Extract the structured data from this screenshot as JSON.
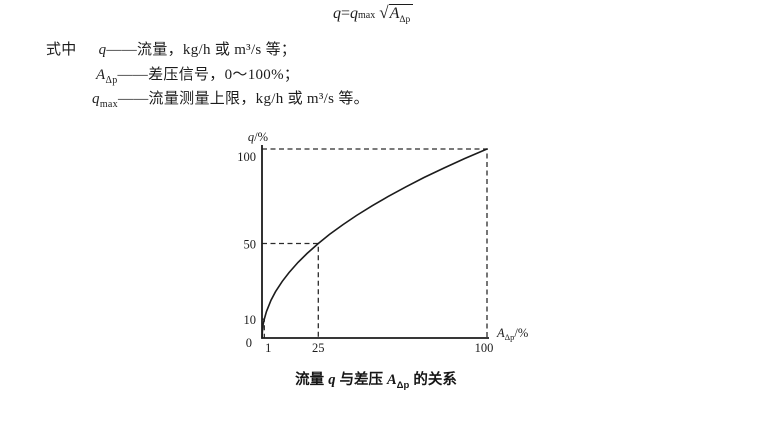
{
  "page": {
    "background": "#ffffff",
    "ink": "#1c1c1c"
  },
  "formula": {
    "lhs": "q",
    "equals": "=",
    "rhs_base": "q",
    "rhs_sub": "max",
    "radicand_base": "A",
    "radicand_sub": "Δp"
  },
  "definitions": {
    "lead": "式中",
    "items": [
      {
        "sym": "q",
        "sub": "",
        "dash": "——",
        "desc": "流量，kg/h 或 m³/s 等；"
      },
      {
        "sym": "A",
        "sub": "Δp",
        "dash": "——",
        "desc": "差压信号，0～100%；"
      },
      {
        "sym": "q",
        "sub": "max",
        "dash": "——",
        "desc": "流量测量上限，kg/h 或 m³/s 等。"
      }
    ]
  },
  "chart_data": {
    "type": "line",
    "title": "流量 q 与差压 AΔp 的关系",
    "xlabel": "AΔp/%",
    "ylabel": "q/%",
    "xlabel_parts": [
      {
        "t": "A",
        "italic": true
      },
      {
        "t": "Δp",
        "sub": true
      },
      {
        "t": "/%"
      }
    ],
    "ylabel_parts": [
      {
        "t": "q",
        "italic": true
      },
      {
        "t": "/%"
      }
    ],
    "xlim": [
      0,
      100
    ],
    "ylim": [
      0,
      100
    ],
    "grid": false,
    "legend": false,
    "relation": "q(%) = 10·√(AΔp %)",
    "x_ticks": [
      {
        "v": 1,
        "label": "1",
        "dx": 4
      },
      {
        "v": 25,
        "label": "25"
      },
      {
        "v": 100,
        "label": "100",
        "dx": -3
      }
    ],
    "y_ticks": [
      {
        "v": 100,
        "label": "100",
        "dy": 12
      },
      {
        "v": 50,
        "label": "50",
        "dy": 5
      },
      {
        "v": 10,
        "label": "10",
        "dy": 5
      },
      {
        "v": 0,
        "label": "0",
        "dy": 9,
        "dx": -4
      }
    ],
    "series": [
      {
        "name": "q = qmax·√(AΔp)",
        "points": [
          [
            0,
            0
          ],
          [
            0.25,
            5
          ],
          [
            0.5,
            7.1
          ],
          [
            1,
            10
          ],
          [
            2,
            14.1
          ],
          [
            4,
            20
          ],
          [
            6,
            24.5
          ],
          [
            9,
            30
          ],
          [
            12,
            34.6
          ],
          [
            16,
            40
          ],
          [
            20,
            44.7
          ],
          [
            25,
            50
          ],
          [
            30,
            54.8
          ],
          [
            36,
            60
          ],
          [
            42,
            64.8
          ],
          [
            49,
            70
          ],
          [
            56,
            74.8
          ],
          [
            64,
            80
          ],
          [
            72,
            84.9
          ],
          [
            81,
            90
          ],
          [
            90,
            94.9
          ],
          [
            100,
            100
          ]
        ]
      }
    ],
    "guides": [
      {
        "x": 1,
        "y": 10
      },
      {
        "x": 25,
        "y": 50
      },
      {
        "x": 100,
        "y": 100
      }
    ]
  },
  "caption": {
    "p1": "流量 ",
    "sym1": "q",
    "p2": " 与差压 ",
    "sym2": "A",
    "sym2_sub": "Δp",
    "p3": " 的关系"
  }
}
